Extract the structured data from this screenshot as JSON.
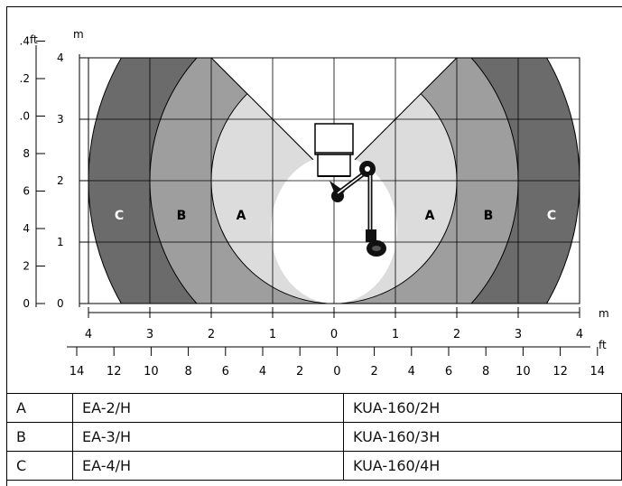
{
  "diagram": {
    "axis_units": {
      "feet": "ft",
      "meters": "m"
    },
    "left_axis_m_ticks": [
      "4",
      "3",
      "2",
      "1",
      "0"
    ],
    "left_axis_ft_ticks": [
      ".4",
      ".2",
      ".0",
      "8",
      "6",
      "4",
      "2",
      "0"
    ],
    "bottom_axis_m_ticks": [
      "4",
      "3",
      "2",
      "1",
      "0",
      "1",
      "2",
      "3",
      "4"
    ],
    "bottom_axis_ft_ticks": [
      "14",
      "12",
      "10",
      "8",
      "6",
      "4",
      "2",
      "0",
      "2",
      "4",
      "6",
      "8",
      "10",
      "12",
      "14"
    ],
    "zone_labels_left": [
      "C",
      "B",
      "A"
    ],
    "zone_labels_right": [
      "A",
      "B",
      "C"
    ],
    "colors": {
      "zone_a": "#dcdcdc",
      "zone_b": "#9e9e9e",
      "zone_c": "#6b6b6b",
      "inner": "#ffffff"
    }
  },
  "legend_table": [
    {
      "code": "A",
      "model_1": "EA-2/H",
      "model_2": "KUA-160/2H"
    },
    {
      "code": "B",
      "model_1": "EA-3/H",
      "model_2": "KUA-160/3H"
    },
    {
      "code": "C",
      "model_1": "EA-4/H",
      "model_2": "KUA-160/4H"
    }
  ]
}
